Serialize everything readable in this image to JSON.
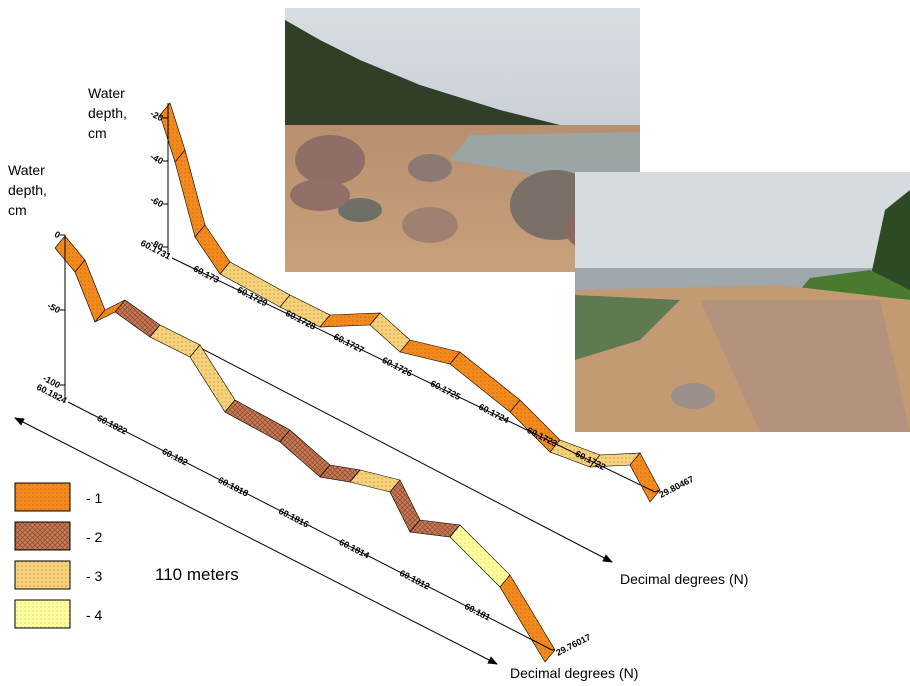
{
  "profiles": [
    {
      "y_label": [
        "Water",
        "depth,",
        "cm"
      ],
      "y_ticks": [
        "-20",
        "-40",
        "-60",
        "-80"
      ],
      "x_ticks": [
        "60.1731",
        "60.173",
        "60.1729",
        "60.1728",
        "60.1727",
        "60.1726",
        "60.1725",
        "60.1724",
        "60.1723",
        "60.1722"
      ],
      "x_end_label": "29.80467",
      "x_axis_label": "Decimal degrees (N)"
    },
    {
      "y_label": [
        "Water",
        "depth,",
        "cm"
      ],
      "y_ticks": [
        "0",
        "-50",
        "-100"
      ],
      "x_ticks": [
        "60.1824",
        "60.1822",
        "60.182",
        "60.1818",
        "60.1816",
        "60.1814",
        "60.1812",
        "60.181"
      ],
      "x_end_label": "29.76017",
      "x_axis_label": "Decimal degrees (N)"
    }
  ],
  "legend": [
    "- 1",
    "- 2",
    "- 3",
    "- 4"
  ],
  "scale_label": "110 meters"
}
